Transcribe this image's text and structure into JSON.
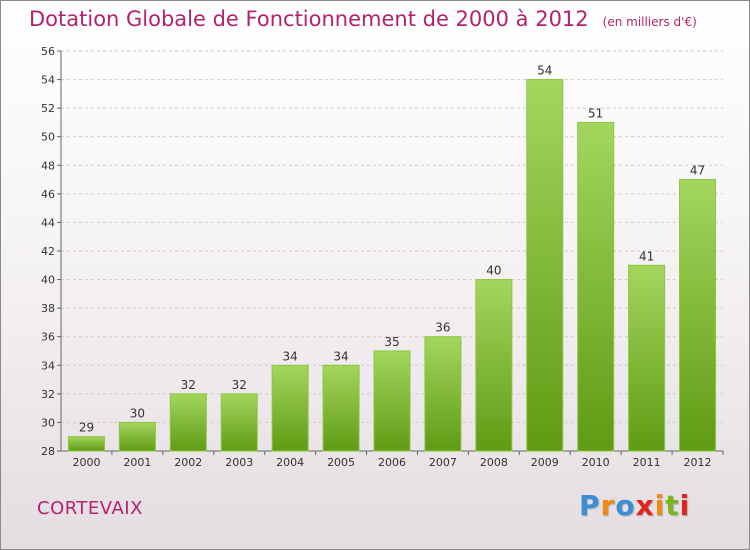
{
  "title": "Dotation Globale de Fonctionnement de 2000 à 2012",
  "unit": "(en milliers d'€)",
  "commune": "CORTEVAIX",
  "logo": {
    "letters": [
      "P",
      "r",
      "o",
      "x",
      "i",
      "t",
      "i"
    ],
    "colors": [
      "#3a8fd6",
      "#f08a12",
      "#3a8fd6",
      "#e2231a",
      "#f08a12",
      "#7ab51d",
      "#e2231a"
    ]
  },
  "colors": {
    "title": "#b2236e",
    "bar_top": "#a4d65e",
    "bar_bottom": "#5f9b14",
    "axis": "#666666",
    "grid": "#cccccc"
  },
  "chart_data": {
    "type": "bar",
    "title": "Dotation Globale de Fonctionnement de 2000 à 2012",
    "ylabel": "(en milliers d'€)",
    "categories": [
      "2000",
      "2001",
      "2002",
      "2003",
      "2004",
      "2005",
      "2006",
      "2007",
      "2008",
      "2009",
      "2010",
      "2011",
      "2012"
    ],
    "values": [
      29,
      30,
      32,
      32,
      34,
      34,
      35,
      36,
      40,
      54,
      51,
      41,
      47
    ],
    "ylim": [
      28,
      56
    ],
    "yticks": [
      28,
      30,
      32,
      34,
      36,
      38,
      40,
      42,
      44,
      46,
      48,
      50,
      52,
      54,
      56
    ],
    "grid": true
  }
}
